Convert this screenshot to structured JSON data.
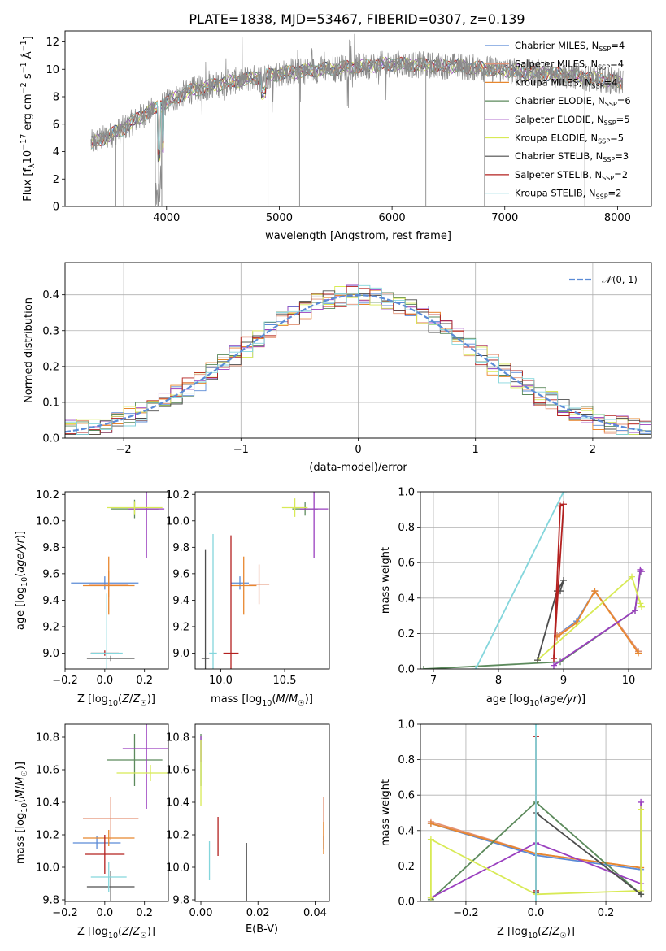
{
  "title": "PLATE=1838, MJD=53467, FIBERID=0307, z=0.139",
  "colors": {
    "chabrier_miles": "#5b8bd6",
    "salpeter_miles": "#e39173",
    "kroupa_miles": "#e8872e",
    "chabrier_elodie": "#5c8a5c",
    "salpeter_elodie": "#9a3fbf",
    "kroupa_elodie": "#d8ea55",
    "chabrier_stelib": "#4d4d4d",
    "salpeter_stelib": "#b3201f",
    "kroupa_stelib": "#84d6dc",
    "data": "#8a8a8a",
    "normal": "#5b8bd6"
  },
  "chart_data": [
    {
      "type": "line",
      "panel": "spectrum",
      "xlabel": "wavelength [Angstrom, rest frame]",
      "ylabel": "Flux [fλ10⁻¹⁷ erg cm⁻² s⁻¹ Å⁻¹]",
      "xlim": [
        3100,
        8300
      ],
      "ylim": [
        0,
        12.8
      ],
      "xticks": [
        4000,
        5000,
        6000,
        7000,
        8000
      ],
      "yticks": [
        0,
        2,
        4,
        6,
        8,
        10,
        12
      ],
      "legend": [
        "Chabrier MILES, N_SSP=4",
        "Salpeter MILES, N_SSP=4",
        "Kroupa MILES, N_SSP=4",
        "Chabrier ELODIE, N_SSP=6",
        "Salpeter ELODIE, N_SSP=5",
        "Kroupa ELODIE, N_SSP=5",
        "Chabrier STELIB, N_SSP=3",
        "Salpeter STELIB, N_SSP=2",
        "Kroupa STELIB, N_SSP=2"
      ],
      "legend_labels": [
        {
          "pre": "Chabrier MILES, N",
          "sub": "SSP",
          "post": "=4"
        },
        {
          "pre": "Salpeter MILES, N",
          "sub": "SSP",
          "post": "=4"
        },
        {
          "pre": "Kroupa MILES, N",
          "sub": "SSP",
          "post": "=4"
        },
        {
          "pre": "Chabrier ELODIE, N",
          "sub": "SSP",
          "post": "=6"
        },
        {
          "pre": "Salpeter ELODIE, N",
          "sub": "SSP",
          "post": "=5"
        },
        {
          "pre": "Kroupa ELODIE, N",
          "sub": "SSP",
          "post": "=5"
        },
        {
          "pre": "Chabrier STELIB, N",
          "sub": "SSP",
          "post": "=3"
        },
        {
          "pre": "Salpeter STELIB, N",
          "sub": "SSP",
          "post": "=2"
        },
        {
          "pre": "Kroupa STELIB, N",
          "sub": "SSP",
          "post": "=2"
        }
      ],
      "legend_placement": "top-right",
      "continuum": {
        "x": [
          3330,
          3450,
          3600,
          3800,
          4000,
          4200,
          4500,
          4800,
          5100,
          5400,
          5700,
          6000,
          6300,
          6600,
          6900,
          7200,
          7500,
          7700,
          7850,
          8050
        ],
        "y": [
          4.6,
          5.0,
          5.6,
          6.7,
          7.6,
          8.4,
          9.0,
          9.4,
          9.8,
          10.0,
          10.2,
          10.4,
          10.3,
          10.2,
          10.0,
          9.8,
          9.6,
          9.4,
          9.3,
          9.0
        ]
      }
    },
    {
      "type": "step",
      "panel": "residual-histogram",
      "xlabel": "(data-model)/error",
      "ylabel": "Normed distribution",
      "xlim": [
        -2.5,
        2.5
      ],
      "ylim": [
        0,
        0.49
      ],
      "xticks": [
        -2,
        -1,
        0,
        1,
        2
      ],
      "yticks": [
        0.0,
        0.1,
        0.2,
        0.3,
        0.4
      ],
      "legend": [
        "𝒩(0, 1)"
      ],
      "legend_placement": "top-right",
      "bin_width": 0.1,
      "grid": true
    },
    {
      "type": "scatter",
      "panel": "age-vs-Z",
      "xlabel": "Z [log10(Z/Z☉)]",
      "ylabel": "age [log10(age/yr)]",
      "xlim": [
        -0.2,
        0.32
      ],
      "ylim": [
        8.88,
        10.22
      ],
      "xticks": [
        -0.2,
        0.0,
        0.2
      ],
      "yticks": [
        9.0,
        9.2,
        9.4,
        9.6,
        9.8,
        10.0,
        10.2
      ],
      "points": [
        {
          "series": "chabrier_miles",
          "x": 0.0,
          "y": 9.53,
          "xerr": 0.17,
          "yerr": 0.05
        },
        {
          "series": "salpeter_miles",
          "x": 0.02,
          "y": 9.52,
          "xerr": 0.1,
          "yerr": 0.1
        },
        {
          "series": "kroupa_miles",
          "x": 0.02,
          "y": 9.51,
          "xerr": 0.13,
          "yerr": 0.22
        },
        {
          "series": "chabrier_elodie",
          "x": 0.15,
          "y": 10.09,
          "xerr": 0.12,
          "yerr": 0.07
        },
        {
          "series": "salpeter_elodie",
          "x": 0.21,
          "y": 10.09,
          "xerr": 0.09,
          "yerr": 0.37
        },
        {
          "series": "kroupa_elodie",
          "x": 0.15,
          "y": 10.1,
          "xerr": 0.14,
          "yerr": 0.05
        },
        {
          "series": "chabrier_stelib",
          "x": 0.03,
          "y": 8.96,
          "xerr": 0.12,
          "yerr": 0.02
        },
        {
          "series": "salpeter_stelib",
          "x": 0.0,
          "y": 9.0,
          "xerr": 0.07,
          "yerr": 0.02
        },
        {
          "series": "kroupa_stelib",
          "x": 0.01,
          "y": 9.0,
          "xerr": 0.08,
          "yerr": 0.45
        }
      ]
    },
    {
      "type": "scatter",
      "panel": "age-vs-mass",
      "xlabel": "mass [log10(M/M☉)]",
      "ylabel": "",
      "xlim": [
        9.8,
        10.85
      ],
      "ylim": [
        8.88,
        10.22
      ],
      "xticks": [
        10.0,
        10.5
      ],
      "yticks": [
        9.0,
        9.2,
        9.4,
        9.6,
        9.8,
        10.0,
        10.2
      ],
      "points": [
        {
          "series": "chabrier_miles",
          "x": 10.15,
          "y": 9.53,
          "xerr": 0.07,
          "yerr": 0.05
        },
        {
          "series": "salpeter_miles",
          "x": 10.3,
          "y": 9.52,
          "xerr": 0.08,
          "yerr": 0.15
        },
        {
          "series": "kroupa_miles",
          "x": 10.18,
          "y": 9.51,
          "xerr": 0.1,
          "yerr": 0.22
        },
        {
          "series": "chabrier_elodie",
          "x": 10.66,
          "y": 10.09,
          "xerr": 0.1,
          "yerr": 0.05
        },
        {
          "series": "salpeter_elodie",
          "x": 10.73,
          "y": 10.09,
          "xerr": 0.11,
          "yerr": 0.37
        },
        {
          "series": "kroupa_elodie",
          "x": 10.58,
          "y": 10.1,
          "xerr": 0.1,
          "yerr": 0.07
        },
        {
          "series": "chabrier_stelib",
          "x": 9.88,
          "y": 8.96,
          "xerr": 0.03,
          "yerr": 0.82
        },
        {
          "series": "salpeter_stelib",
          "x": 10.08,
          "y": 9.0,
          "xerr": 0.06,
          "yerr": 0.89
        },
        {
          "series": "kroupa_stelib",
          "x": 9.94,
          "y": 9.0,
          "xerr": 0.03,
          "yerr": 0.9
        }
      ]
    },
    {
      "type": "line",
      "panel": "mass-weight-vs-age",
      "xlabel": "age [log10(age/yr)]",
      "ylabel": "mass weight",
      "xlim": [
        6.8,
        10.35
      ],
      "ylim": [
        0,
        1.0
      ],
      "xticks": [
        7,
        8,
        9,
        10
      ],
      "yticks": [
        0.0,
        0.2,
        0.4,
        0.6,
        0.8,
        1.0
      ],
      "grid": true,
      "series": [
        {
          "key": "chabrier_miles",
          "x": [
            8.9,
            9.2,
            9.48,
            10.15
          ],
          "y": [
            0.19,
            0.27,
            0.44,
            0.1
          ]
        },
        {
          "key": "salpeter_miles",
          "x": [
            8.9,
            9.2,
            9.48,
            10.15
          ],
          "y": [
            0.19,
            0.26,
            0.44,
            0.1
          ]
        },
        {
          "key": "kroupa_miles",
          "x": [
            8.9,
            9.2,
            9.48,
            10.15
          ],
          "y": [
            0.18,
            0.26,
            0.44,
            0.09
          ]
        },
        {
          "key": "chabrier_elodie",
          "x": [
            6.85,
            8.95,
            10.1,
            10.18
          ],
          "y": [
            0.0,
            0.04,
            0.33,
            0.55
          ]
        },
        {
          "key": "salpeter_elodie",
          "x": [
            8.85,
            10.1,
            10.18,
            10.2
          ],
          "y": [
            0.02,
            0.33,
            0.56,
            0.55
          ]
        },
        {
          "key": "kroupa_elodie",
          "x": [
            8.6,
            10.05,
            10.18,
            10.2
          ],
          "y": [
            0.05,
            0.52,
            0.37,
            0.35
          ]
        },
        {
          "key": "chabrier_stelib",
          "x": [
            8.6,
            8.9,
            9.0,
            8.95
          ],
          "y": [
            0.05,
            0.44,
            0.5,
            0.44
          ]
        },
        {
          "key": "salpeter_stelib",
          "x": [
            8.85,
            9.0,
            8.95,
            8.85
          ],
          "y": [
            0.06,
            0.93,
            0.92,
            0.06
          ]
        },
        {
          "key": "kroupa_stelib",
          "x": [
            7.65,
            9.0
          ],
          "y": [
            0.0,
            1.0
          ]
        }
      ]
    },
    {
      "type": "scatter",
      "panel": "mass-vs-Z",
      "xlabel": "Z [log10(Z/Z☉)]",
      "ylabel": "mass [log10(M/M☉)]",
      "xlim": [
        -0.2,
        0.32
      ],
      "ylim": [
        9.79,
        10.88
      ],
      "xticks": [
        -0.2,
        0.0,
        0.2
      ],
      "yticks": [
        9.8,
        10.0,
        10.2,
        10.4,
        10.6,
        10.8
      ],
      "points": [
        {
          "series": "chabrier_miles",
          "x": -0.04,
          "y": 10.15,
          "xerr": 0.12,
          "yerr": 0.04
        },
        {
          "series": "salpeter_miles",
          "x": 0.03,
          "y": 10.3,
          "xerr": 0.14,
          "yerr": 0.13
        },
        {
          "series": "kroupa_miles",
          "x": 0.02,
          "y": 10.18,
          "xerr": 0.13,
          "yerr": 0.05
        },
        {
          "series": "chabrier_elodie",
          "x": 0.15,
          "y": 10.66,
          "xerr": 0.14,
          "yerr": 0.16
        },
        {
          "series": "salpeter_elodie",
          "x": 0.21,
          "y": 10.73,
          "xerr": 0.12,
          "yerr": 0.37
        },
        {
          "series": "kroupa_elodie",
          "x": 0.23,
          "y": 10.58,
          "xerr": 0.17,
          "yerr": 0.05
        },
        {
          "series": "chabrier_stelib",
          "x": 0.03,
          "y": 9.88,
          "xerr": 0.12,
          "yerr": 0.1
        },
        {
          "series": "salpeter_stelib",
          "x": 0.0,
          "y": 10.08,
          "xerr": 0.1,
          "yerr": 0.12
        },
        {
          "series": "kroupa_stelib",
          "x": 0.02,
          "y": 9.94,
          "xerr": 0.09,
          "yerr": 0.09
        }
      ]
    },
    {
      "type": "scatter",
      "panel": "mass-vs-EBV",
      "xlabel": "E(B-V)",
      "ylabel": "",
      "xlim": [
        -0.002,
        0.045
      ],
      "ylim": [
        9.79,
        10.88
      ],
      "xticks": [
        0.0,
        0.02,
        0.04
      ],
      "yticks": [
        9.8,
        10.0,
        10.2,
        10.4,
        10.6,
        10.8
      ],
      "points": [
        {
          "series": "chabrier_miles",
          "x": 0.043,
          "y": 10.15,
          "xerr": 0.0,
          "yerr": 0.04
        },
        {
          "series": "salpeter_miles",
          "x": 0.043,
          "y": 10.3,
          "xerr": 0.0,
          "yerr": 0.13
        },
        {
          "series": "kroupa_miles",
          "x": 0.043,
          "y": 10.18,
          "xerr": 0.0,
          "yerr": 0.1
        },
        {
          "series": "chabrier_elodie",
          "x": 0.0,
          "y": 10.66,
          "xerr": 0.0,
          "yerr": 0.16
        },
        {
          "series": "salpeter_elodie",
          "x": 0.0,
          "y": 10.73,
          "xerr": 0.0,
          "yerr": 0.08
        },
        {
          "series": "kroupa_elodie",
          "x": 0.0,
          "y": 10.58,
          "xerr": 0.0,
          "yerr": 0.2
        },
        {
          "series": "chabrier_stelib",
          "x": 0.016,
          "y": 9.9,
          "xerr": 0.0,
          "yerr": 0.25
        },
        {
          "series": "salpeter_stelib",
          "x": 0.006,
          "y": 10.19,
          "xerr": 0.0,
          "yerr": 0.12
        },
        {
          "series": "kroupa_stelib",
          "x": 0.003,
          "y": 10.04,
          "xerr": 0.0,
          "yerr": 0.12
        }
      ]
    },
    {
      "type": "line",
      "panel": "mass-weight-vs-Z",
      "xlabel": "Z [log10(Z/Z☉)]",
      "ylabel": "mass weight",
      "xlim": [
        -0.33,
        0.33
      ],
      "ylim": [
        0,
        1.0
      ],
      "xticks": [
        -0.2,
        0.0,
        0.2
      ],
      "yticks": [
        0.0,
        0.2,
        0.4,
        0.6,
        0.8,
        1.0
      ],
      "grid": true,
      "series": [
        {
          "key": "chabrier_miles",
          "x": [
            -0.3,
            0.0,
            0.3
          ],
          "y": [
            0.44,
            0.26,
            0.18
          ]
        },
        {
          "key": "salpeter_miles",
          "x": [
            -0.3,
            0.0,
            0.3
          ],
          "y": [
            0.45,
            0.27,
            0.19
          ]
        },
        {
          "key": "kroupa_miles",
          "x": [
            -0.3,
            0.0,
            0.3
          ],
          "y": [
            0.44,
            0.27,
            0.19
          ]
        },
        {
          "key": "chabrier_elodie",
          "x": [
            -0.3,
            0.0,
            0.3
          ],
          "y": [
            0.01,
            0.56,
            0.04
          ]
        },
        {
          "key": "salpeter_elodie",
          "x": [
            -0.3,
            0.0,
            0.3,
            0.3
          ],
          "y": [
            0.02,
            0.33,
            0.1,
            0.56
          ]
        },
        {
          "key": "kroupa_elodie",
          "x": [
            -0.3,
            -0.3,
            0.0,
            0.3,
            0.3
          ],
          "y": [
            0.02,
            0.35,
            0.04,
            0.06,
            0.52
          ]
        },
        {
          "key": "chabrier_stelib",
          "x": [
            0.0,
            0.0,
            0.3
          ],
          "y": [
            0.05,
            0.5,
            0.04
          ]
        },
        {
          "key": "salpeter_stelib",
          "x": [
            0.0,
            0.0
          ],
          "y": [
            0.06,
            0.93
          ]
        },
        {
          "key": "kroupa_stelib",
          "x": [
            0.0,
            0.0
          ],
          "y": [
            0.0,
            1.0
          ]
        }
      ]
    }
  ]
}
